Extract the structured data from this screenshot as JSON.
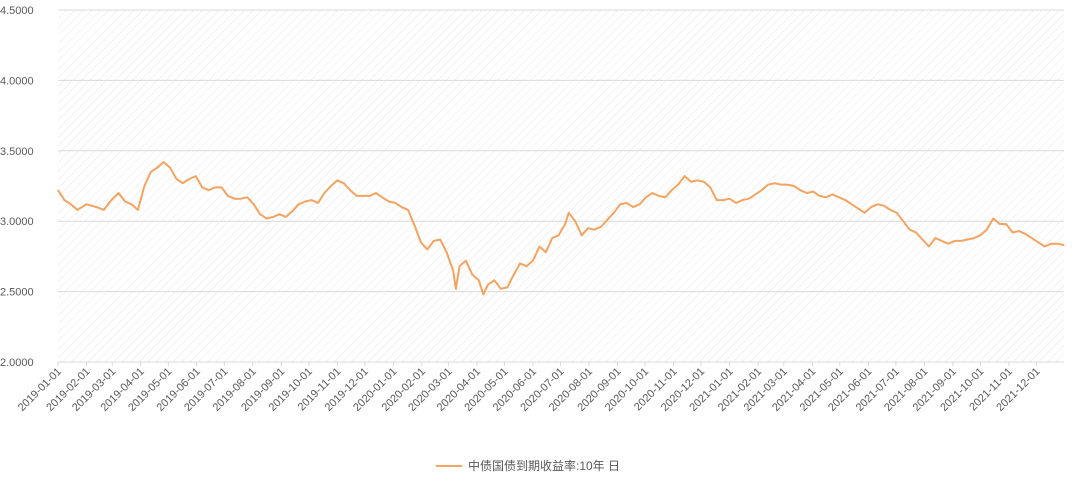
{
  "chart_data": {
    "type": "line",
    "title": "",
    "xlabel": "",
    "ylabel": "",
    "ylim": [
      2.0,
      4.5
    ],
    "y_ticks": [
      "2.0000",
      "2.5000",
      "3.0000",
      "3.5000",
      "4.0000",
      "4.5000"
    ],
    "x_ticks": [
      "2019-01-01",
      "2019-02-01",
      "2019-03-01",
      "2019-04-01",
      "2019-05-01",
      "2019-06-01",
      "2019-07-01",
      "2019-08-01",
      "2019-09-01",
      "2019-10-01",
      "2019-11-01",
      "2019-12-01",
      "2020-01-01",
      "2020-02-01",
      "2020-03-01",
      "2020-04-01",
      "2020-05-01",
      "2020-06-01",
      "2020-07-01",
      "2020-08-01",
      "2020-09-01",
      "2020-10-01",
      "2020-11-01",
      "2020-12-01",
      "2021-01-01",
      "2021-02-01",
      "2021-03-01",
      "2021-04-01",
      "2021-05-01",
      "2021-06-01",
      "2021-07-01",
      "2021-08-01",
      "2021-09-01",
      "2021-10-01",
      "2021-11-01",
      "2021-12-01"
    ],
    "grid": true,
    "legend_position": "bottom",
    "colors": {
      "series": "#F4A460",
      "grid": "#d9d9d9",
      "hatch": "#e3e3e3"
    },
    "series": [
      {
        "name": "中债国债到期收益率:10年 日",
        "points": [
          [
            "2019-01-01",
            3.22
          ],
          [
            "2019-01-08",
            3.15
          ],
          [
            "2019-01-15",
            3.12
          ],
          [
            "2019-01-22",
            3.08
          ],
          [
            "2019-02-01",
            3.12
          ],
          [
            "2019-02-12",
            3.1
          ],
          [
            "2019-02-20",
            3.08
          ],
          [
            "2019-02-28",
            3.15
          ],
          [
            "2019-03-08",
            3.2
          ],
          [
            "2019-03-15",
            3.14
          ],
          [
            "2019-03-22",
            3.12
          ],
          [
            "2019-03-29",
            3.08
          ],
          [
            "2019-04-05",
            3.25
          ],
          [
            "2019-04-12",
            3.35
          ],
          [
            "2019-04-19",
            3.38
          ],
          [
            "2019-04-26",
            3.42
          ],
          [
            "2019-05-03",
            3.38
          ],
          [
            "2019-05-10",
            3.3
          ],
          [
            "2019-05-17",
            3.27
          ],
          [
            "2019-05-24",
            3.3
          ],
          [
            "2019-05-31",
            3.32
          ],
          [
            "2019-06-07",
            3.24
          ],
          [
            "2019-06-14",
            3.22
          ],
          [
            "2019-06-21",
            3.24
          ],
          [
            "2019-06-28",
            3.24
          ],
          [
            "2019-07-05",
            3.18
          ],
          [
            "2019-07-12",
            3.16
          ],
          [
            "2019-07-19",
            3.16
          ],
          [
            "2019-07-26",
            3.17
          ],
          [
            "2019-08-02",
            3.12
          ],
          [
            "2019-08-09",
            3.05
          ],
          [
            "2019-08-16",
            3.02
          ],
          [
            "2019-08-23",
            3.03
          ],
          [
            "2019-08-30",
            3.05
          ],
          [
            "2019-09-06",
            3.03
          ],
          [
            "2019-09-13",
            3.07
          ],
          [
            "2019-09-20",
            3.12
          ],
          [
            "2019-09-27",
            3.14
          ],
          [
            "2019-10-04",
            3.15
          ],
          [
            "2019-10-11",
            3.13
          ],
          [
            "2019-10-18",
            3.2
          ],
          [
            "2019-10-25",
            3.25
          ],
          [
            "2019-11-01",
            3.29
          ],
          [
            "2019-11-08",
            3.27
          ],
          [
            "2019-11-15",
            3.22
          ],
          [
            "2019-11-22",
            3.18
          ],
          [
            "2019-11-29",
            3.18
          ],
          [
            "2019-12-06",
            3.18
          ],
          [
            "2019-12-13",
            3.2
          ],
          [
            "2019-12-20",
            3.17
          ],
          [
            "2019-12-27",
            3.14
          ],
          [
            "2020-01-03",
            3.13
          ],
          [
            "2020-01-10",
            3.1
          ],
          [
            "2020-01-17",
            3.08
          ],
          [
            "2020-01-24",
            2.97
          ],
          [
            "2020-01-31",
            2.85
          ],
          [
            "2020-02-07",
            2.8
          ],
          [
            "2020-02-14",
            2.86
          ],
          [
            "2020-02-21",
            2.87
          ],
          [
            "2020-02-28",
            2.78
          ],
          [
            "2020-03-06",
            2.65
          ],
          [
            "2020-03-09",
            2.52
          ],
          [
            "2020-03-13",
            2.68
          ],
          [
            "2020-03-20",
            2.72
          ],
          [
            "2020-03-27",
            2.62
          ],
          [
            "2020-04-03",
            2.58
          ],
          [
            "2020-04-08",
            2.48
          ],
          [
            "2020-04-13",
            2.55
          ],
          [
            "2020-04-20",
            2.58
          ],
          [
            "2020-04-27",
            2.52
          ],
          [
            "2020-05-04",
            2.53
          ],
          [
            "2020-05-11",
            2.62
          ],
          [
            "2020-05-18",
            2.7
          ],
          [
            "2020-05-25",
            2.68
          ],
          [
            "2020-06-01",
            2.72
          ],
          [
            "2020-06-08",
            2.82
          ],
          [
            "2020-06-15",
            2.78
          ],
          [
            "2020-06-22",
            2.88
          ],
          [
            "2020-06-29",
            2.9
          ],
          [
            "2020-07-06",
            2.98
          ],
          [
            "2020-07-10",
            3.06
          ],
          [
            "2020-07-17",
            3.0
          ],
          [
            "2020-07-24",
            2.9
          ],
          [
            "2020-07-31",
            2.95
          ],
          [
            "2020-08-07",
            2.94
          ],
          [
            "2020-08-14",
            2.96
          ],
          [
            "2020-08-21",
            3.01
          ],
          [
            "2020-08-28",
            3.06
          ],
          [
            "2020-09-04",
            3.12
          ],
          [
            "2020-09-11",
            3.13
          ],
          [
            "2020-09-18",
            3.1
          ],
          [
            "2020-09-25",
            3.12
          ],
          [
            "2020-10-02",
            3.17
          ],
          [
            "2020-10-09",
            3.2
          ],
          [
            "2020-10-16",
            3.18
          ],
          [
            "2020-10-23",
            3.17
          ],
          [
            "2020-10-30",
            3.22
          ],
          [
            "2020-11-06",
            3.26
          ],
          [
            "2020-11-13",
            3.32
          ],
          [
            "2020-11-20",
            3.28
          ],
          [
            "2020-11-27",
            3.29
          ],
          [
            "2020-12-04",
            3.28
          ],
          [
            "2020-12-11",
            3.24
          ],
          [
            "2020-12-18",
            3.15
          ],
          [
            "2020-12-25",
            3.15
          ],
          [
            "2021-01-01",
            3.16
          ],
          [
            "2021-01-08",
            3.13
          ],
          [
            "2021-01-15",
            3.15
          ],
          [
            "2021-01-22",
            3.16
          ],
          [
            "2021-01-29",
            3.19
          ],
          [
            "2021-02-05",
            3.22
          ],
          [
            "2021-02-12",
            3.26
          ],
          [
            "2021-02-19",
            3.27
          ],
          [
            "2021-02-26",
            3.26
          ],
          [
            "2021-03-05",
            3.26
          ],
          [
            "2021-03-12",
            3.25
          ],
          [
            "2021-03-19",
            3.22
          ],
          [
            "2021-03-26",
            3.2
          ],
          [
            "2021-04-02",
            3.21
          ],
          [
            "2021-04-09",
            3.18
          ],
          [
            "2021-04-16",
            3.17
          ],
          [
            "2021-04-23",
            3.19
          ],
          [
            "2021-04-30",
            3.17
          ],
          [
            "2021-05-07",
            3.15
          ],
          [
            "2021-05-14",
            3.12
          ],
          [
            "2021-05-21",
            3.09
          ],
          [
            "2021-05-28",
            3.06
          ],
          [
            "2021-06-04",
            3.1
          ],
          [
            "2021-06-11",
            3.12
          ],
          [
            "2021-06-18",
            3.11
          ],
          [
            "2021-06-25",
            3.08
          ],
          [
            "2021-07-02",
            3.06
          ],
          [
            "2021-07-09",
            3.0
          ],
          [
            "2021-07-16",
            2.94
          ],
          [
            "2021-07-23",
            2.92
          ],
          [
            "2021-07-30",
            2.87
          ],
          [
            "2021-08-06",
            2.82
          ],
          [
            "2021-08-13",
            2.88
          ],
          [
            "2021-08-20",
            2.86
          ],
          [
            "2021-08-27",
            2.84
          ],
          [
            "2021-09-03",
            2.86
          ],
          [
            "2021-09-10",
            2.86
          ],
          [
            "2021-09-17",
            2.87
          ],
          [
            "2021-09-24",
            2.88
          ],
          [
            "2021-10-01",
            2.9
          ],
          [
            "2021-10-08",
            2.94
          ],
          [
            "2021-10-15",
            3.02
          ],
          [
            "2021-10-22",
            2.98
          ],
          [
            "2021-10-29",
            2.98
          ],
          [
            "2021-11-05",
            2.92
          ],
          [
            "2021-11-12",
            2.93
          ],
          [
            "2021-11-19",
            2.91
          ],
          [
            "2021-11-26",
            2.88
          ],
          [
            "2021-12-03",
            2.85
          ],
          [
            "2021-12-10",
            2.82
          ],
          [
            "2021-12-17",
            2.84
          ],
          [
            "2021-12-24",
            2.84
          ],
          [
            "2021-12-31",
            2.83
          ]
        ]
      }
    ]
  }
}
